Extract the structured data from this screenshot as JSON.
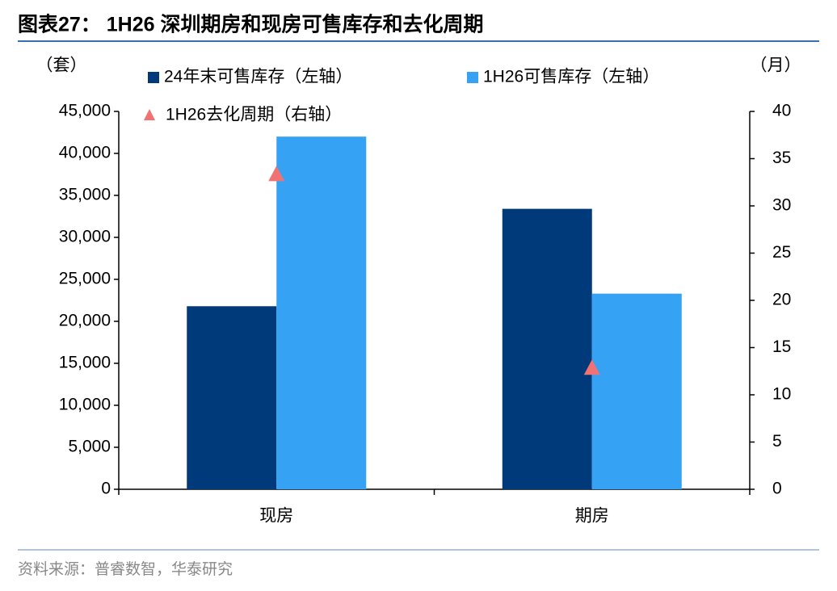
{
  "chart_data": {
    "type": "bar",
    "title": "图表27：  1H26 深圳期房和现房可售库存和去化周期",
    "source": "资料来源：普睿数智，华泰研究",
    "y_unit_label": "（套）",
    "y2_unit_label": "（月）",
    "categories": [
      "现房",
      "期房"
    ],
    "series": [
      {
        "name": "24年末可售库存（左轴）",
        "type": "bar",
        "color": "#003a7a",
        "values": [
          21800,
          33400
        ]
      },
      {
        "name": "1H26可售库存（左轴）",
        "type": "bar",
        "color": "#35a2f4",
        "values": [
          42000,
          23300
        ]
      },
      {
        "name": "1H26去化周期（右轴）",
        "type": "scatter",
        "marker": "triangle",
        "axis": "y2",
        "color": "#f07272",
        "values": [
          33.3,
          12.8
        ]
      }
    ],
    "ylim": [
      0,
      45000
    ],
    "yticks": [
      0,
      {
        "value": 5000,
        "label": "5,000"
      },
      {
        "value": 10000,
        "label": "10,000"
      },
      {
        "value": 15000,
        "label": "15,000"
      },
      {
        "value": 20000,
        "label": "20,000"
      },
      {
        "value": 25000,
        "label": "25,000"
      },
      {
        "value": 30000,
        "label": "30,000"
      },
      {
        "value": 35000,
        "label": "35,000"
      },
      {
        "value": 40000,
        "label": "40,000"
      },
      {
        "value": 45000,
        "label": "45,000"
      }
    ],
    "y2lim": [
      0,
      40
    ],
    "y2ticks": [
      0,
      5,
      10,
      15,
      20,
      25,
      30,
      35,
      40
    ]
  }
}
